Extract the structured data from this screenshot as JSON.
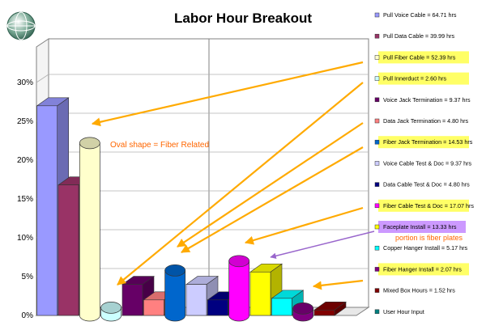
{
  "chart_data": {
    "type": "bar",
    "title": "Labor Hour Breakout",
    "ylim": [
      0,
      30
    ],
    "ytick_labels": [
      "0%",
      "5%",
      "10%",
      "15%",
      "20%",
      "25%",
      "30%"
    ],
    "grid": true,
    "legend_placement": "right",
    "values_percent": [
      27.0,
      16.8,
      22.2,
      1.0,
      4.0,
      2.0,
      5.8,
      4.0,
      2.0,
      7.0,
      5.6,
      2.2,
      0.9,
      0.7,
      0
    ],
    "series": [
      {
        "name": "Pull Voice Cable =  64.71 hrs",
        "color": "#9999ff",
        "shape": "box",
        "highlight": false
      },
      {
        "name": "Pull Data Cable =  39.99 hrs",
        "color": "#993366",
        "shape": "box",
        "highlight": false
      },
      {
        "name": "Pull Fiber Cable =  52.39 hrs",
        "color": "#ffffcc",
        "shape": "oval",
        "highlight": true
      },
      {
        "name": "Pull Innerduct =  2.60 hrs",
        "color": "#ccffff",
        "shape": "oval",
        "highlight": true
      },
      {
        "name": "Voice Jack Termination =  9.37 hrs",
        "color": "#660066",
        "shape": "box",
        "highlight": false
      },
      {
        "name": "Data Jack Termination =  4.80 hrs",
        "color": "#ff8080",
        "shape": "box",
        "highlight": false
      },
      {
        "name": "Fiber Jack Termination =  14.53 hrs",
        "color": "#0066cc",
        "shape": "oval",
        "highlight": true
      },
      {
        "name": "Voice Cable Test & Doc =  9.37 hrs",
        "color": "#ccccff",
        "shape": "box",
        "highlight": false
      },
      {
        "name": "Data Cable Test & Doc =  4.80 hrs",
        "color": "#000080",
        "shape": "box",
        "highlight": false
      },
      {
        "name": "Fiber Cable Test & Doc =  17.07 hrs",
        "color": "#ff00ff",
        "shape": "oval",
        "highlight": true
      },
      {
        "name": "Faceplate Install =  13.33 hrs",
        "color": "#ffff00",
        "shape": "box",
        "highlight": "purple"
      },
      {
        "name": "Copper Hanger Install =  5.17 hrs",
        "color": "#00ffff",
        "shape": "box",
        "highlight": false
      },
      {
        "name": "Fiber Hanger Install =  2.07 hrs",
        "color": "#800080",
        "shape": "oval",
        "highlight": true
      },
      {
        "name": "Mixed Box Hours =  1.52 hrs",
        "color": "#800000",
        "shape": "box",
        "highlight": false
      },
      {
        "name": "User Hour Input",
        "color": "#008080",
        "shape": "box",
        "highlight": false
      }
    ],
    "annotations": [
      {
        "text": "Oval shape = Fiber Related",
        "color": "#ff6600"
      },
      {
        "text": "portion is fiber plates",
        "color": "#ff6600"
      }
    ],
    "colors": {
      "arrow": "#ffaa00",
      "purple_arrow": "#9966cc",
      "highlight_yellow": "#ffff66",
      "highlight_purple": "#cc99ff"
    }
  }
}
